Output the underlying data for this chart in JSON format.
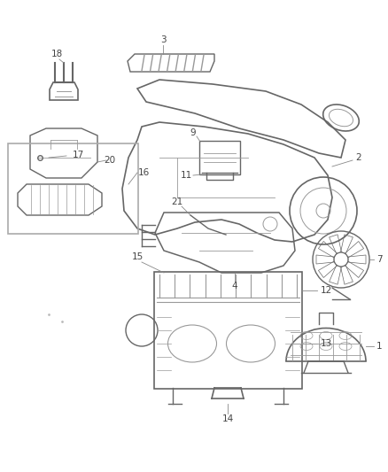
{
  "background_color": "#ffffff",
  "line_color": "#666666",
  "label_color": "#444444",
  "figsize": [
    4.38,
    5.33
  ],
  "dpi": 100,
  "label_fontsize": 7.5
}
